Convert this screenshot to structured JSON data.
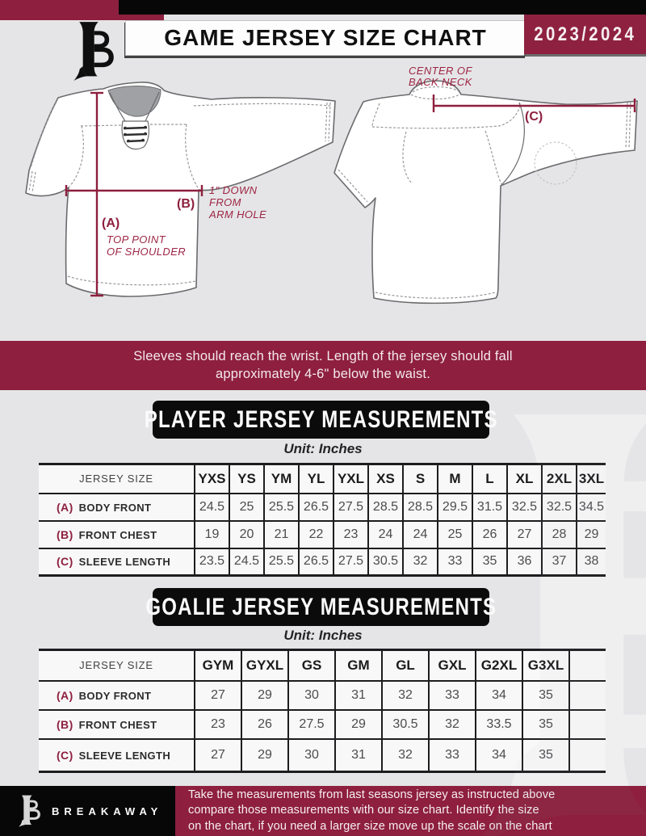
{
  "header": {
    "title": "GAME JERSEY SIZE CHART",
    "season": "2023/2024"
  },
  "diagram": {
    "front": {
      "a_label": "(A)",
      "a_caption_line1": "TOP POINT",
      "a_caption_line2": "OF SHOULDER",
      "b_label": "(B)",
      "b_caption_line1": "1\" DOWN",
      "b_caption_line2": "FROM",
      "b_caption_line3": "ARM HOLE"
    },
    "back": {
      "c_label": "(C)",
      "c_caption_line1": "CENTER OF",
      "c_caption_line2": "BACK NECK"
    }
  },
  "notice": {
    "line1": "Sleeves should reach the wrist. Length of the jersey should fall",
    "line2": "approximately 4-6\" below the waist."
  },
  "player_table": {
    "section_title": "PLAYER JERSEY MEASUREMENTS",
    "unit_label": "Unit: Inches",
    "header_label": "JERSEY SIZE",
    "sizes": [
      "YXS",
      "YS",
      "YM",
      "YL",
      "YXL",
      "XS",
      "S",
      "M",
      "L",
      "XL",
      "2XL",
      "3XL"
    ],
    "rows": [
      {
        "key": "(A)",
        "label": "BODY FRONT",
        "values": [
          "24.5",
          "25",
          "25.5",
          "26.5",
          "27.5",
          "28.5",
          "28.5",
          "29.5",
          "31.5",
          "32.5",
          "32.5",
          "34.5"
        ]
      },
      {
        "key": "(B)",
        "label": "FRONT CHEST",
        "values": [
          "19",
          "20",
          "21",
          "22",
          "23",
          "24",
          "24",
          "25",
          "26",
          "27",
          "28",
          "29"
        ]
      },
      {
        "key": "(C)",
        "label": "SLEEVE LENGTH",
        "values": [
          "23.5",
          "24.5",
          "25.5",
          "26.5",
          "27.5",
          "30.5",
          "32",
          "33",
          "35",
          "36",
          "37",
          "38"
        ]
      }
    ]
  },
  "goalie_table": {
    "section_title": "GOALIE JERSEY MEASUREMENTS",
    "unit_label": "Unit: Inches",
    "header_label": "JERSEY SIZE",
    "sizes": [
      "GYM",
      "GYXL",
      "GS",
      "GM",
      "GL",
      "GXL",
      "G2XL",
      "G3XL",
      ""
    ],
    "rows": [
      {
        "key": "(A)",
        "label": "BODY FRONT",
        "values": [
          "27",
          "29",
          "30",
          "31",
          "32",
          "33",
          "34",
          "35",
          ""
        ]
      },
      {
        "key": "(B)",
        "label": "FRONT CHEST",
        "values": [
          "23",
          "26",
          "27.5",
          "29",
          "30.5",
          "32",
          "33.5",
          "35",
          ""
        ]
      },
      {
        "key": "(C)",
        "label": "SLEEVE LENGTH",
        "values": [
          "27",
          "29",
          "30",
          "31",
          "32",
          "33",
          "34",
          "35",
          ""
        ]
      }
    ]
  },
  "footer": {
    "brand": "BREAKAWAY",
    "note_line1": "Take the measurements from last seasons jersey as instructed above",
    "note_line2": "compare those measurements  with our size chart. Identify the size",
    "note_line3": "on the chart, if you need a larger size move up the scale on the chart"
  },
  "colors": {
    "maroon": "#8e1f3e",
    "black": "#0b0b0b",
    "page_background": "#e5e5e7"
  }
}
